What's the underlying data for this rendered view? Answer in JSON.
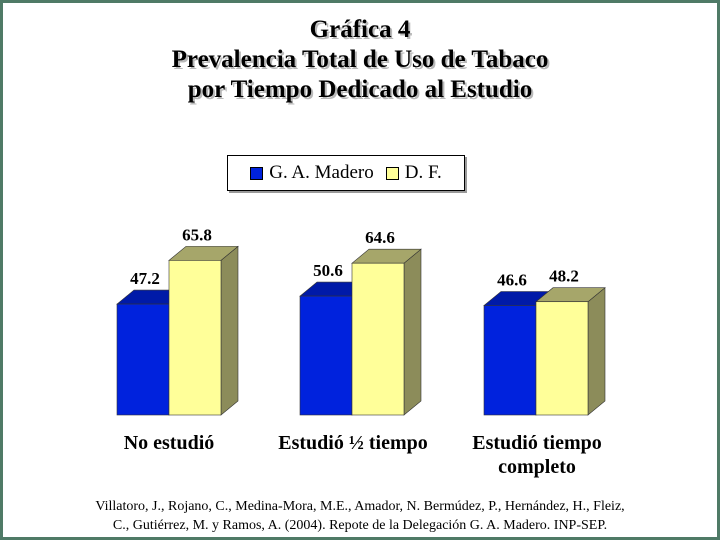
{
  "chart_data": {
    "type": "bar",
    "title": [
      "Gráfica 4",
      "Prevalencia Total de Uso de Tabaco",
      "por Tiempo Dedicado al Estudio"
    ],
    "categories": [
      [
        "No estudió"
      ],
      [
        "Estudió ½ tiempo"
      ],
      [
        "Estudió tiempo",
        "completo"
      ]
    ],
    "series": [
      {
        "name": "G. A. Madero",
        "values": [
          47.2,
          50.6,
          46.6
        ],
        "labels": [
          "47.2",
          "50.6",
          "46.6"
        ],
        "color": "#0022dd",
        "top_color": "#001aa8"
      },
      {
        "name": "D. F.",
        "values": [
          65.8,
          64.6,
          48.2
        ],
        "labels": [
          "65.8",
          "64.6",
          "48.2"
        ],
        "color": "#ffff99",
        "top_color": "#a6a66a"
      }
    ],
    "legend_position": "top-center",
    "grid": false,
    "ylim": [
      0,
      75
    ]
  },
  "source_note": [
    "Villatoro, J., Rojano, C., Medina-Mora, M.E., Amador, N. Bermúdez, P., Hernández, H., Fleiz,",
    "C., Gutiérrez, M. y Ramos, A. (2004). Repote de la Delegación G. A. Madero. INP-SEP."
  ]
}
